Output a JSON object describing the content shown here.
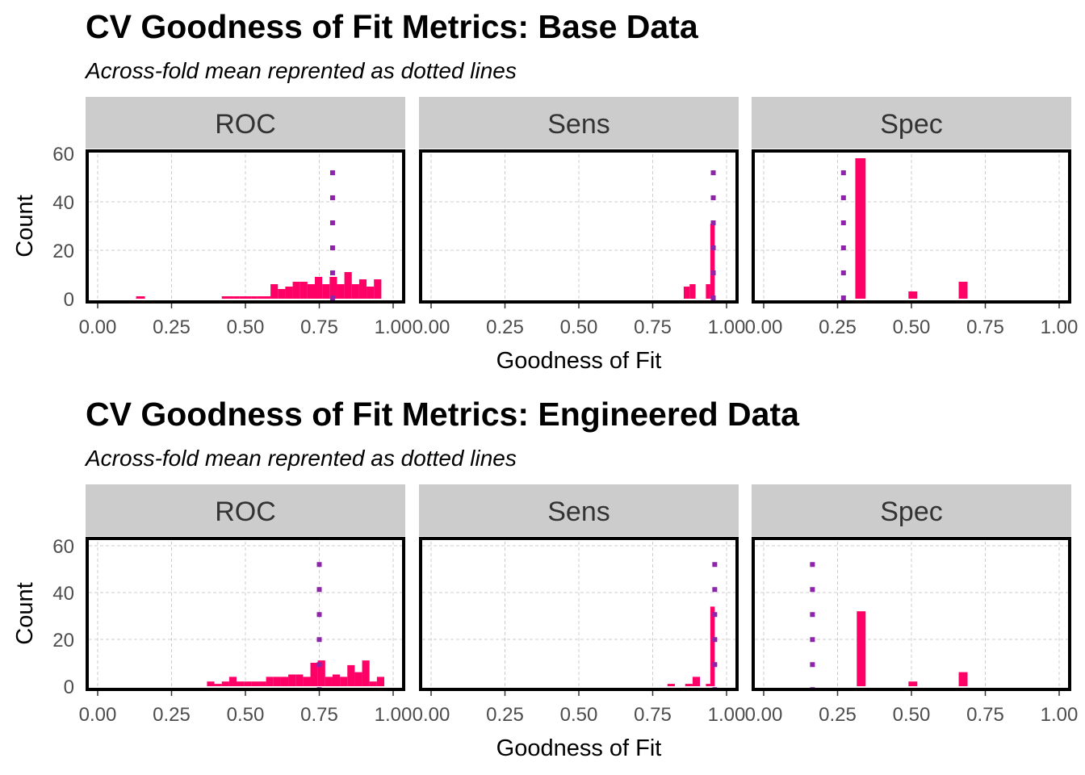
{
  "chart_data": [
    {
      "type": "bar",
      "title": "CV Goodness of Fit Metrics: Base Data",
      "subtitle": "Across-fold mean reprented as dotted lines",
      "xlabel": "Goodness of Fit",
      "ylabel": "Count",
      "xlim": [
        0,
        1
      ],
      "ylim": [
        0,
        62
      ],
      "x_ticks": [
        "0.00",
        "0.25",
        "0.50",
        "0.75",
        "1.00"
      ],
      "y_ticks": [
        "0",
        "20",
        "40",
        "60"
      ],
      "grid": true,
      "colors": {
        "bar": "#FF0066",
        "mean_line": "#8E24AA",
        "strip": "#CCCCCC",
        "panel_border": "#000000",
        "grid": "#CCCCCC"
      },
      "panels": [
        {
          "name": "ROC",
          "mean": 0.795,
          "bins": [
            {
              "x0": 0.13,
              "x1": 0.16,
              "y": 1
            },
            {
              "x0": 0.42,
              "x1": 0.44,
              "y": 1
            },
            {
              "x0": 0.44,
              "x1": 0.46,
              "y": 1
            },
            {
              "x0": 0.46,
              "x1": 0.48,
              "y": 1
            },
            {
              "x0": 0.48,
              "x1": 0.5,
              "y": 1
            },
            {
              "x0": 0.5,
              "x1": 0.52,
              "y": 1
            },
            {
              "x0": 0.52,
              "x1": 0.54,
              "y": 1
            },
            {
              "x0": 0.54,
              "x1": 0.56,
              "y": 1
            },
            {
              "x0": 0.56,
              "x1": 0.585,
              "y": 1
            },
            {
              "x0": 0.585,
              "x1": 0.61,
              "y": 6
            },
            {
              "x0": 0.61,
              "x1": 0.635,
              "y": 4
            },
            {
              "x0": 0.635,
              "x1": 0.66,
              "y": 5
            },
            {
              "x0": 0.66,
              "x1": 0.685,
              "y": 7
            },
            {
              "x0": 0.685,
              "x1": 0.71,
              "y": 7
            },
            {
              "x0": 0.71,
              "x1": 0.735,
              "y": 6
            },
            {
              "x0": 0.735,
              "x1": 0.76,
              "y": 9
            },
            {
              "x0": 0.76,
              "x1": 0.785,
              "y": 6
            },
            {
              "x0": 0.785,
              "x1": 0.81,
              "y": 9
            },
            {
              "x0": 0.81,
              "x1": 0.835,
              "y": 6
            },
            {
              "x0": 0.835,
              "x1": 0.86,
              "y": 11
            },
            {
              "x0": 0.86,
              "x1": 0.885,
              "y": 6
            },
            {
              "x0": 0.885,
              "x1": 0.91,
              "y": 8
            },
            {
              "x0": 0.91,
              "x1": 0.935,
              "y": 5
            },
            {
              "x0": 0.935,
              "x1": 0.96,
              "y": 8
            }
          ]
        },
        {
          "name": "Sens",
          "mean": 0.955,
          "bins": [
            {
              "x0": 0.855,
              "x1": 0.875,
              "y": 5
            },
            {
              "x0": 0.875,
              "x1": 0.895,
              "y": 6
            },
            {
              "x0": 0.93,
              "x1": 0.945,
              "y": 6
            },
            {
              "x0": 0.945,
              "x1": 0.96,
              "y": 31
            }
          ]
        },
        {
          "name": "Spec",
          "mean": 0.27,
          "bins": [
            {
              "x0": 0.31,
              "x1": 0.345,
              "y": 58
            },
            {
              "x0": 0.49,
              "x1": 0.52,
              "y": 3
            },
            {
              "x0": 0.66,
              "x1": 0.69,
              "y": 7
            }
          ]
        }
      ]
    },
    {
      "type": "bar",
      "title": "CV Goodness of Fit Metrics: Engineered Data",
      "subtitle": "Across-fold mean reprented as dotted lines",
      "xlabel": "Goodness of Fit",
      "ylabel": "Count",
      "xlim": [
        0,
        1
      ],
      "ylim": [
        0,
        62
      ],
      "x_ticks": [
        "0.00",
        "0.25",
        "0.50",
        "0.75",
        "1.00"
      ],
      "y_ticks": [
        "0",
        "20",
        "40",
        "60"
      ],
      "grid": true,
      "colors": {
        "bar": "#FF0066",
        "mean_line": "#8E24AA",
        "strip": "#CCCCCC",
        "panel_border": "#000000",
        "grid": "#CCCCCC"
      },
      "panels": [
        {
          "name": "ROC",
          "mean": 0.75,
          "bins": [
            {
              "x0": 0.37,
              "x1": 0.395,
              "y": 2
            },
            {
              "x0": 0.395,
              "x1": 0.42,
              "y": 1
            },
            {
              "x0": 0.42,
              "x1": 0.445,
              "y": 2
            },
            {
              "x0": 0.445,
              "x1": 0.47,
              "y": 4
            },
            {
              "x0": 0.47,
              "x1": 0.495,
              "y": 2
            },
            {
              "x0": 0.495,
              "x1": 0.52,
              "y": 2
            },
            {
              "x0": 0.52,
              "x1": 0.545,
              "y": 2
            },
            {
              "x0": 0.545,
              "x1": 0.57,
              "y": 2
            },
            {
              "x0": 0.57,
              "x1": 0.595,
              "y": 4
            },
            {
              "x0": 0.595,
              "x1": 0.62,
              "y": 4
            },
            {
              "x0": 0.62,
              "x1": 0.645,
              "y": 4
            },
            {
              "x0": 0.645,
              "x1": 0.67,
              "y": 5
            },
            {
              "x0": 0.67,
              "x1": 0.695,
              "y": 5
            },
            {
              "x0": 0.695,
              "x1": 0.72,
              "y": 4
            },
            {
              "x0": 0.72,
              "x1": 0.745,
              "y": 10
            },
            {
              "x0": 0.745,
              "x1": 0.77,
              "y": 11
            },
            {
              "x0": 0.77,
              "x1": 0.795,
              "y": 4
            },
            {
              "x0": 0.795,
              "x1": 0.82,
              "y": 5
            },
            {
              "x0": 0.82,
              "x1": 0.845,
              "y": 4
            },
            {
              "x0": 0.845,
              "x1": 0.87,
              "y": 9
            },
            {
              "x0": 0.87,
              "x1": 0.895,
              "y": 6
            },
            {
              "x0": 0.895,
              "x1": 0.92,
              "y": 11
            },
            {
              "x0": 0.92,
              "x1": 0.945,
              "y": 2
            },
            {
              "x0": 0.945,
              "x1": 0.97,
              "y": 4
            }
          ]
        },
        {
          "name": "Sens",
          "mean": 0.96,
          "bins": [
            {
              "x0": 0.8,
              "x1": 0.825,
              "y": 1
            },
            {
              "x0": 0.86,
              "x1": 0.885,
              "y": 1
            },
            {
              "x0": 0.885,
              "x1": 0.91,
              "y": 4
            },
            {
              "x0": 0.93,
              "x1": 0.945,
              "y": 1
            },
            {
              "x0": 0.945,
              "x1": 0.96,
              "y": 34
            }
          ]
        },
        {
          "name": "Spec",
          "mean": 0.165,
          "bins": [
            {
              "x0": 0.315,
              "x1": 0.345,
              "y": 32
            },
            {
              "x0": 0.49,
              "x1": 0.52,
              "y": 2
            },
            {
              "x0": 0.66,
              "x1": 0.69,
              "y": 6
            }
          ]
        }
      ]
    }
  ]
}
